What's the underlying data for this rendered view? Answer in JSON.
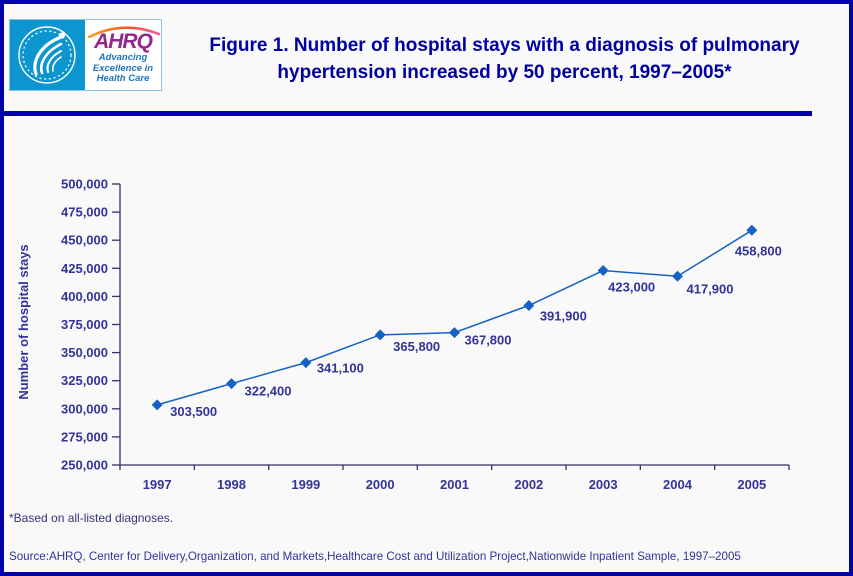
{
  "page": {
    "background": "#f9f9f9",
    "border_color": "#0202a6"
  },
  "header": {
    "logo": {
      "hhs_seal": "HHS eagle seal",
      "ahrq_acronym": "AHRQ",
      "tagline_lines": [
        "Advancing",
        "Excellence in",
        "Health Care"
      ],
      "ahrq_purple": "#92278f",
      "tagline_blue": "#1b75bc",
      "hhs_blue": "#0d95cf"
    },
    "title_line1": "Figure 1. Number of hospital stays with a diagnosis of pulmonary",
    "title_line2": "hypertension increased by 50 percent, 1997–2005*"
  },
  "chart_data": {
    "type": "line",
    "title": "",
    "xlabel": "",
    "ylabel": "Number of hospital stays",
    "categories": [
      "1997",
      "1998",
      "1999",
      "2000",
      "2001",
      "2002",
      "2003",
      "2004",
      "2005"
    ],
    "values": [
      303500,
      322400,
      341100,
      365800,
      367800,
      391900,
      423000,
      417900,
      458800
    ],
    "value_labels": [
      "303,500",
      "322,400",
      "341,100",
      "365,800",
      "367,800",
      "391,900",
      "423,000",
      "417,900",
      "458,800"
    ],
    "ylim": [
      250000,
      500000
    ],
    "ytick_step": 25000,
    "grid": false,
    "legend": "none",
    "marker": "diamond",
    "line_color": "#1562c5",
    "axis_color": "#333366",
    "label_color": "#333399"
  },
  "footer": {
    "footnote": "*Based on all-listed diagnoses.",
    "source": "Source:AHRQ, Center for Delivery,Organization, and Markets,Healthcare Cost and Utilization Project,Nationwide Inpatient Sample, 1997–2005"
  }
}
